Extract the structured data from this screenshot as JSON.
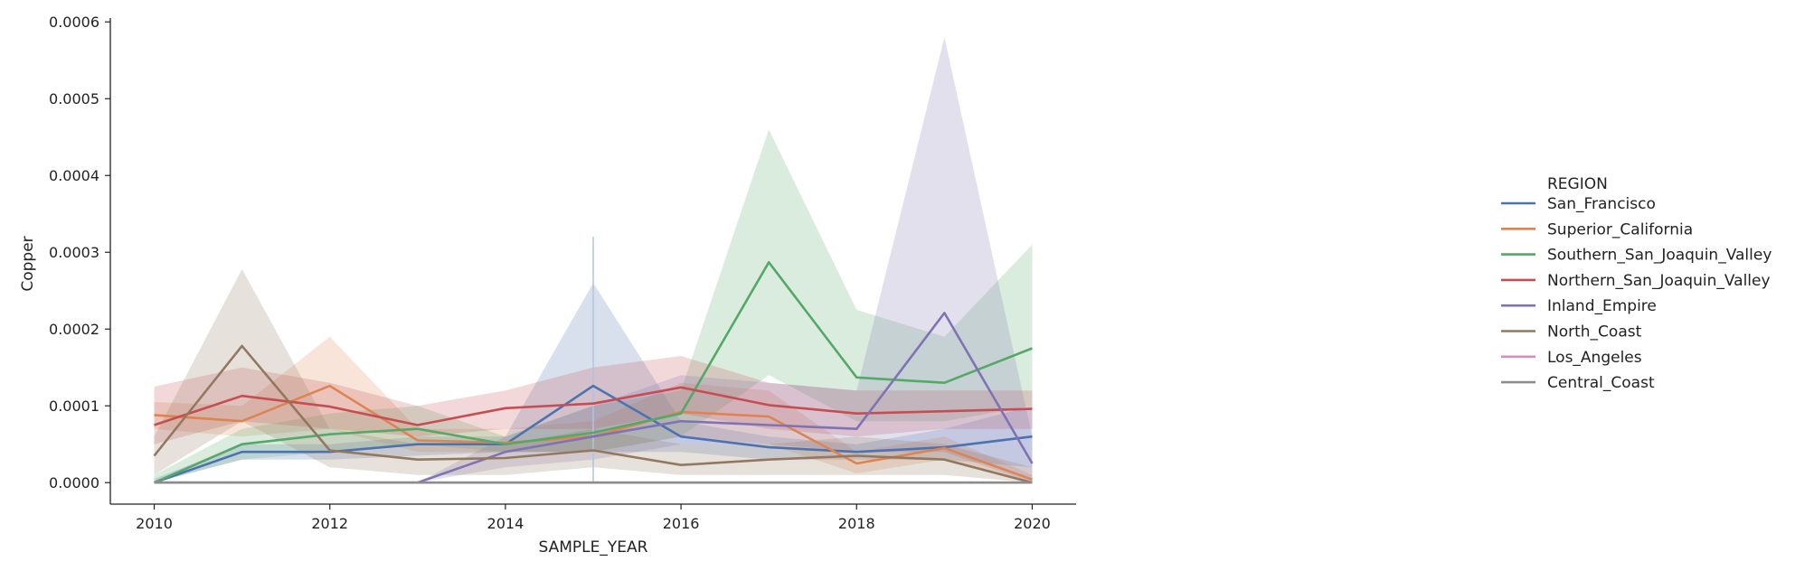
{
  "chart_data": {
    "type": "line",
    "title": "",
    "xlabel": "SAMPLE_YEAR",
    "ylabel": "Copper",
    "xlim": [
      2009.5,
      2020.5
    ],
    "ylim": [
      -2.8e-05,
      0.000605
    ],
    "x_ticks": [
      2010,
      2012,
      2014,
      2016,
      2018,
      2020
    ],
    "x_tick_labels": [
      "2010",
      "2012",
      "2014",
      "2016",
      "2018",
      "2020"
    ],
    "y_ticks": [
      0,
      0.0001,
      0.0002,
      0.0003,
      0.0004,
      0.0005,
      0.0006
    ],
    "y_tick_labels": [
      "0.0000",
      "0.0001",
      "0.0002",
      "0.0003",
      "0.0004",
      "0.0005",
      "0.0006"
    ],
    "grid": false,
    "legend_title": "REGION",
    "legend_position": "right",
    "x": [
      2010,
      2011,
      2012,
      2013,
      2014,
      2015,
      2016,
      2017,
      2018,
      2019,
      2020
    ],
    "series": [
      {
        "name": "San_Francisco",
        "color": "#4c72b0",
        "values": [
          0.0,
          4e-05,
          4e-05,
          5e-05,
          5e-05,
          0.000126,
          6e-05,
          4.6e-05,
          4e-05,
          4.6e-05,
          6e-05
        ],
        "lower": [
          0.0,
          3e-05,
          3e-05,
          3.5e-05,
          4e-05,
          4e-05,
          4e-05,
          3e-05,
          3e-05,
          3e-05,
          2e-05
        ],
        "upper": [
          5e-06,
          5e-05,
          5e-05,
          6e-05,
          6e-05,
          0.00026,
          8e-05,
          6e-05,
          5e-05,
          7e-05,
          0.0001
        ]
      },
      {
        "name": "Superior_California",
        "color": "#dd8452",
        "values": [
          8.8e-05,
          8e-05,
          0.000126,
          5.5e-05,
          5.2e-05,
          6e-05,
          9.2e-05,
          8.6e-05,
          2.5e-05,
          4.5e-05,
          4e-06
        ],
        "lower": [
          7e-05,
          6e-05,
          7e-05,
          4e-05,
          4e-05,
          4e-05,
          6e-05,
          5e-05,
          1.2e-05,
          3e-05,
          0.0
        ],
        "upper": [
          0.000105,
          0.0001,
          0.00019,
          7e-05,
          7e-05,
          8e-05,
          0.00013,
          0.00012,
          4e-05,
          6e-05,
          1e-05
        ]
      },
      {
        "name": "Southern_San_Joaquin_Valley",
        "color": "#55a868",
        "values": [
          0.0,
          5e-05,
          6.3e-05,
          7e-05,
          5e-05,
          6.5e-05,
          9e-05,
          0.000287,
          0.000137,
          0.00013,
          0.000175
        ],
        "lower": [
          0.0,
          3e-05,
          4e-05,
          5e-05,
          4e-05,
          4e-05,
          6e-05,
          0.00014,
          8e-05,
          8e-05,
          0.0001
        ],
        "upper": [
          1e-05,
          7e-05,
          9e-05,
          0.0001,
          6e-05,
          0.0001,
          0.00012,
          0.00046,
          0.000225,
          0.00019,
          0.00031
        ]
      },
      {
        "name": "Northern_San_Joaquin_Valley",
        "color": "#c44e52",
        "values": [
          7.5e-05,
          0.000113,
          9.9e-05,
          7.5e-05,
          9.7e-05,
          0.000103,
          0.000124,
          0.000101,
          9e-05,
          9.3e-05,
          9.6e-05
        ],
        "lower": [
          5e-05,
          8e-05,
          7e-05,
          6e-05,
          7e-05,
          7e-05,
          9e-05,
          7e-05,
          6e-05,
          7e-05,
          7e-05
        ],
        "upper": [
          0.000125,
          0.00015,
          0.00013,
          0.0001,
          0.00012,
          0.00015,
          0.000165,
          0.00013,
          0.00012,
          0.00012,
          0.00012
        ]
      },
      {
        "name": "Inland_Empire",
        "color": "#8172b3",
        "values": [
          0.0,
          0.0,
          0.0,
          0.0,
          4e-05,
          6e-05,
          8e-05,
          7.5e-05,
          7e-05,
          0.000221,
          2.5e-05
        ],
        "lower": [
          0.0,
          0.0,
          0.0,
          0.0,
          2e-05,
          3e-05,
          5e-05,
          5e-05,
          4e-05,
          4e-05,
          0.0
        ],
        "upper": [
          0.0,
          0.0,
          0.0,
          0.0,
          6e-05,
          0.0001,
          0.00014,
          0.00013,
          0.00012,
          0.00058,
          6e-05
        ]
      },
      {
        "name": "North_Coast",
        "color": "#937860",
        "values": [
          3.5e-05,
          0.000178,
          4.2e-05,
          3e-05,
          3.2e-05,
          4.2e-05,
          2.3e-05,
          3e-05,
          3.5e-05,
          3e-05,
          0.0
        ],
        "lower": [
          1e-05,
          8e-05,
          2e-05,
          1e-05,
          1e-05,
          2e-05,
          1e-05,
          1e-05,
          1e-05,
          1e-05,
          0.0
        ],
        "upper": [
          6e-05,
          0.000278,
          7e-05,
          5e-05,
          5e-05,
          7e-05,
          5e-05,
          5e-05,
          6e-05,
          5e-05,
          2e-05
        ]
      },
      {
        "name": "Los_Angeles",
        "color": "#da8bc3",
        "values": [
          0.0,
          0.0,
          0.0,
          0.0,
          0.0,
          0.0,
          0.0,
          0.0,
          0.0,
          0.0,
          0.0
        ],
        "lower": [
          0.0,
          0.0,
          0.0,
          0.0,
          0.0,
          0.0,
          0.0,
          0.0,
          0.0,
          0.0,
          0.0
        ],
        "upper": [
          0.0,
          0.0,
          0.0,
          0.0,
          0.0,
          0.0,
          0.0,
          0.0,
          0.0,
          0.0,
          0.0
        ]
      },
      {
        "name": "Central_Coast",
        "color": "#8c8c8c",
        "values": [
          0.0,
          0.0,
          0.0,
          0.0,
          0.0,
          0.0,
          0.0,
          0.0,
          0.0,
          0.0,
          0.0
        ],
        "lower": [
          0.0,
          0.0,
          0.0,
          0.0,
          0.0,
          0.0,
          0.0,
          0.0,
          0.0,
          0.0,
          0.0
        ],
        "upper": [
          0.0,
          0.0,
          0.0,
          0.0,
          0.0,
          0.0,
          0.0,
          0.0,
          0.0,
          0.0,
          0.0
        ]
      }
    ],
    "vertical_line_at": 2015,
    "vertical_line_range": [
      0.0,
      0.00032
    ]
  }
}
